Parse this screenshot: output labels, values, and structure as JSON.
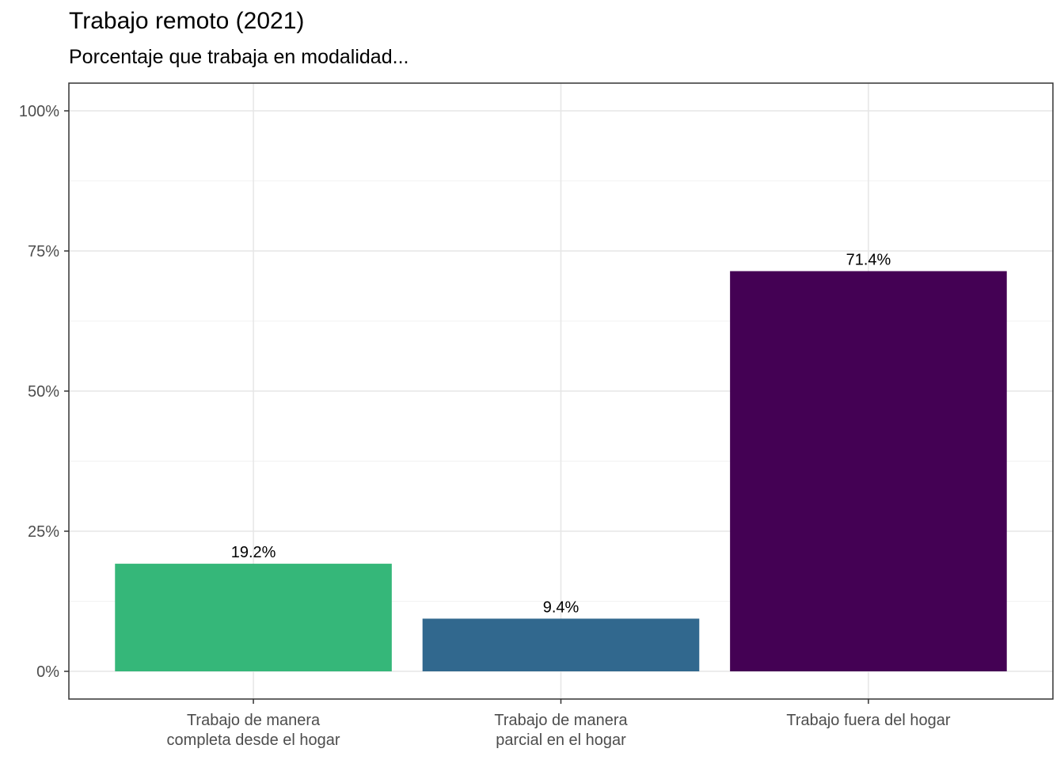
{
  "chart_data": {
    "type": "bar",
    "title": "Trabajo remoto (2021)",
    "subtitle": "Porcentaje que trabaja en modalidad...",
    "xlabel": "",
    "ylabel": "",
    "categories": [
      [
        "Trabajo de manera",
        "completa desde el hogar"
      ],
      [
        "Trabajo de manera",
        "parcial en el hogar"
      ],
      [
        "Trabajo fuera del hogar"
      ]
    ],
    "values": [
      19.2,
      9.4,
      71.4
    ],
    "data_labels": [
      "19.2%",
      "9.4%",
      "71.4%"
    ],
    "colors": [
      "#35b779",
      "#31688e",
      "#440154"
    ],
    "ylim": [
      0,
      100
    ],
    "yticks": [
      0,
      25,
      50,
      75,
      100
    ],
    "ytick_labels": [
      "0%",
      "25%",
      "50%",
      "75%",
      "100%"
    ],
    "grid": true,
    "legend": "none"
  }
}
